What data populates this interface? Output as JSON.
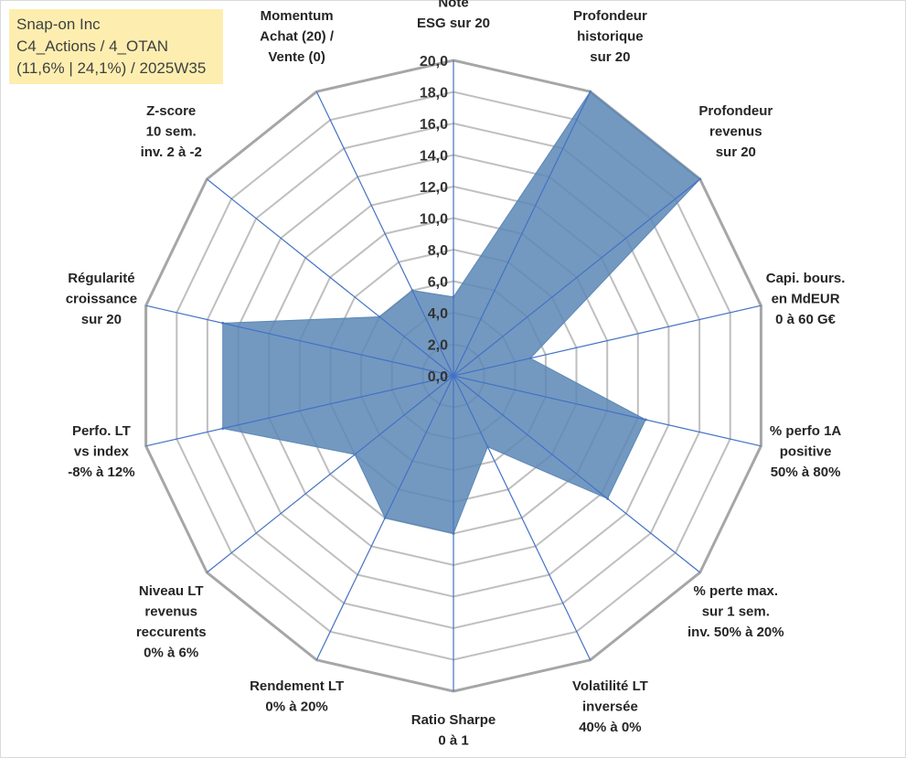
{
  "info": {
    "company": "Snap-on Inc",
    "category": "C4_Actions / 4_OTAN",
    "stats": "(11,6% | 24,1%) / 2025W35"
  },
  "colors": {
    "fill": "#5b87b6",
    "spoke": "#4472c4",
    "ring": "#bfbfbf",
    "outer_ring": "#a6a6a6",
    "info_bg": "#fdeeb0"
  },
  "chart_data": {
    "type": "radar",
    "rlim": [
      0,
      20
    ],
    "ticks": [
      "0,0",
      "2,0",
      "4,0",
      "6,0",
      "8,0",
      "10,0",
      "12,0",
      "14,0",
      "16,0",
      "18,0",
      "20,0"
    ],
    "grid": true,
    "axes": [
      {
        "label": [
          "Note",
          "ESG sur 20"
        ],
        "value": 5
      },
      {
        "label": [
          "Profondeur",
          "historique",
          "sur 20"
        ],
        "value": 20
      },
      {
        "label": [
          "Profondeur",
          "revenus",
          "sur 20"
        ],
        "value": 20
      },
      {
        "label": [
          "Capi. bours.",
          "en MdEUR",
          "0 à 60 G€"
        ],
        "value": 5
      },
      {
        "label": [
          "% perfo 1A",
          "positive",
          "50% à 80%"
        ],
        "value": 12.5
      },
      {
        "label": [
          "% perte max.",
          "sur 1 sem.",
          "inv. 50% à 20%"
        ],
        "value": 12.5
      },
      {
        "label": [
          "Volatilité LT",
          "inversée",
          "40% à 0%"
        ],
        "value": 5
      },
      {
        "label": [
          "Ratio Sharpe",
          "0 à 1"
        ],
        "value": 10
      },
      {
        "label": [
          "Rendement LT",
          "0% à 20%"
        ],
        "value": 10
      },
      {
        "label": [
          "Niveau LT",
          "revenus",
          "reccurents",
          "0% à 6%"
        ],
        "value": 8
      },
      {
        "label": [
          "Perfo. LT",
          "vs index",
          "-8% à 12%"
        ],
        "value": 15
      },
      {
        "label": [
          "Régularité",
          "croissance",
          "sur 20"
        ],
        "value": 15
      },
      {
        "label": [
          "Z-score",
          "10 sem.",
          "inv. 2 à -2"
        ],
        "value": 6
      },
      {
        "label": [
          "Momentum",
          "Achat (20) /",
          "Vente (0)"
        ],
        "value": 6
      }
    ]
  }
}
